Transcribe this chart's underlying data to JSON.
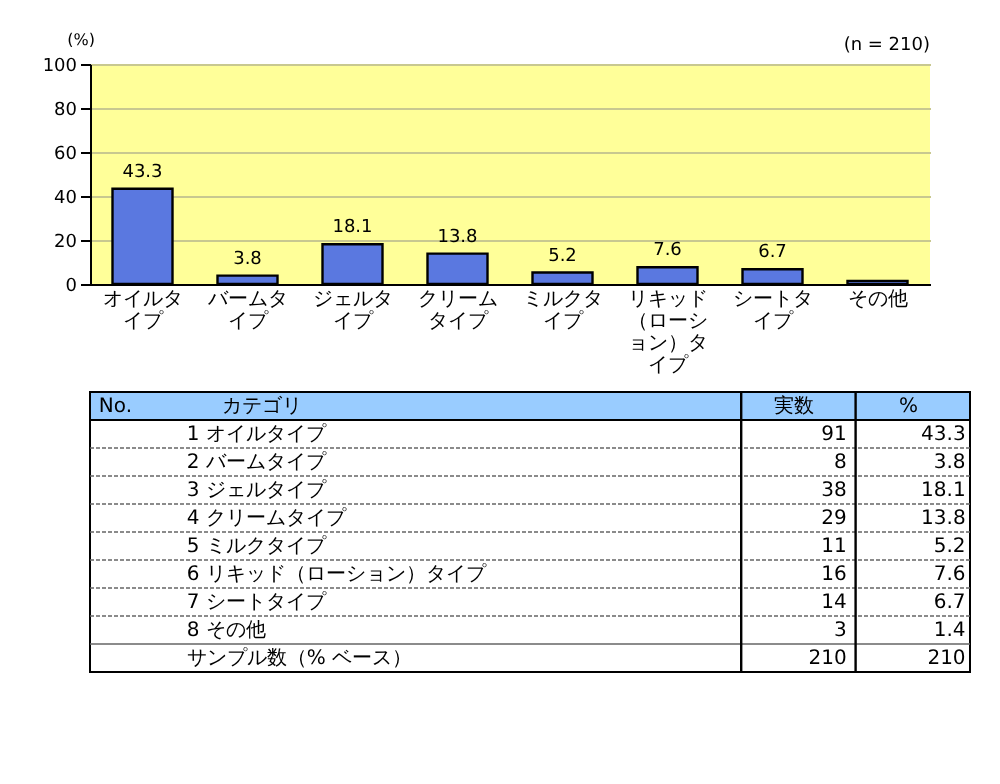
{
  "chart_data": [
    {
      "type": "bar",
      "ylabel": "(%)",
      "annotations": [
        "(n = 210)"
      ],
      "categories": [
        "オイルタイプ",
        "バームタイプ",
        "ジェルタイプ",
        "クリームタイプ",
        "ミルクタイプ",
        "リキッド（ローション）タイプ",
        "シートタイプ",
        "その他"
      ],
      "values": [
        43.3,
        3.8,
        18.1,
        13.8,
        5.2,
        7.6,
        6.7,
        1.4
      ],
      "value_labels": [
        "43.3",
        "3.8",
        "18.1",
        "13.8",
        "5.2",
        "7.6",
        "6.7",
        null
      ],
      "color": "#5a78e0",
      "ylim": [
        0,
        100
      ],
      "yticks": [
        0,
        20,
        40,
        60,
        80,
        100
      ],
      "grid": "y"
    },
    {
      "type": "other",
      "data_labels": true,
      "annotations": [
        "No.",
        "カテゴリ"
      ],
      "categories": [
        "1 オイルタイプ",
        "2 バームタイプ",
        "3 ジェルタイプ",
        "4 クリームタイプ",
        "5 ミルクタイプ",
        "6 リキッド（ローション）タイプ",
        "7 シートタイプ",
        "8 その他",
        "サンプル数（% ベース）"
      ],
      "series": [
        {
          "name": "実数",
          "values": [
            91,
            8,
            38,
            29,
            11,
            16,
            14,
            3,
            210
          ]
        },
        {
          "name": "%",
          "values": [
            43.3,
            3.8,
            18.1,
            13.8,
            5.2,
            7.6,
            6.7,
            1.4,
            210
          ]
        }
      ]
    }
  ]
}
